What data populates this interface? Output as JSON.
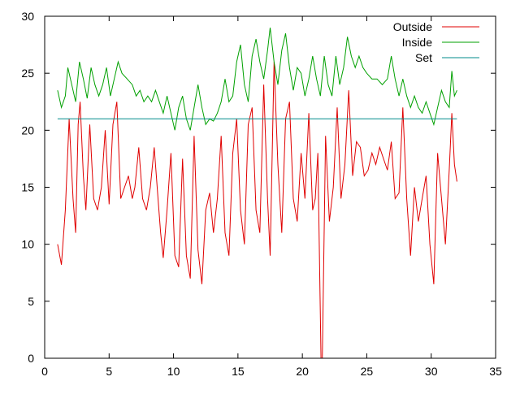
{
  "chart_data": {
    "type": "line",
    "title": "",
    "xlabel": "",
    "ylabel": "",
    "xlim": [
      0,
      35
    ],
    "ylim": [
      0,
      30
    ],
    "x_ticks": [
      0,
      5,
      10,
      15,
      20,
      25,
      30,
      35
    ],
    "y_ticks": [
      0,
      5,
      10,
      15,
      20,
      25,
      30
    ],
    "grid": false,
    "legend_position": "top-right",
    "series": [
      {
        "name": "Outside",
        "color": "#e00000",
        "points": [
          [
            1.0,
            10.0
          ],
          [
            1.3,
            8.2
          ],
          [
            1.6,
            13.0
          ],
          [
            1.9,
            21.0
          ],
          [
            2.2,
            14.0
          ],
          [
            2.4,
            11.0
          ],
          [
            2.6,
            20.5
          ],
          [
            2.75,
            22.5
          ],
          [
            3.0,
            16.0
          ],
          [
            3.2,
            13.0
          ],
          [
            3.5,
            20.5
          ],
          [
            3.8,
            14.0
          ],
          [
            4.1,
            13.0
          ],
          [
            4.4,
            15.0
          ],
          [
            4.7,
            20.0
          ],
          [
            5.0,
            13.5
          ],
          [
            5.3,
            20.5
          ],
          [
            5.6,
            22.5
          ],
          [
            5.9,
            14.0
          ],
          [
            6.2,
            15.0
          ],
          [
            6.5,
            16.0
          ],
          [
            6.8,
            14.0
          ],
          [
            7.0,
            15.0
          ],
          [
            7.3,
            18.5
          ],
          [
            7.6,
            14.0
          ],
          [
            7.9,
            13.0
          ],
          [
            8.2,
            15.0
          ],
          [
            8.5,
            18.5
          ],
          [
            8.8,
            14.0
          ],
          [
            9.0,
            11.0
          ],
          [
            9.2,
            8.8
          ],
          [
            9.5,
            13.0
          ],
          [
            9.8,
            18.0
          ],
          [
            10.1,
            9.0
          ],
          [
            10.4,
            8.0
          ],
          [
            10.7,
            17.5
          ],
          [
            11.0,
            9.0
          ],
          [
            11.3,
            7.0
          ],
          [
            11.6,
            19.5
          ],
          [
            11.9,
            9.5
          ],
          [
            12.2,
            6.5
          ],
          [
            12.5,
            13.0
          ],
          [
            12.8,
            14.5
          ],
          [
            13.1,
            11.0
          ],
          [
            13.4,
            14.0
          ],
          [
            13.7,
            19.5
          ],
          [
            14.0,
            11.0
          ],
          [
            14.3,
            9.0
          ],
          [
            14.6,
            18.0
          ],
          [
            14.9,
            21.0
          ],
          [
            15.2,
            13.0
          ],
          [
            15.5,
            10.0
          ],
          [
            15.8,
            20.5
          ],
          [
            16.1,
            22.0
          ],
          [
            16.4,
            13.0
          ],
          [
            16.7,
            11.0
          ],
          [
            17.0,
            24.0
          ],
          [
            17.3,
            14.0
          ],
          [
            17.5,
            9.0
          ],
          [
            17.8,
            26.0
          ],
          [
            18.1,
            17.0
          ],
          [
            18.4,
            11.0
          ],
          [
            18.7,
            21.0
          ],
          [
            19.0,
            22.5
          ],
          [
            19.3,
            14.0
          ],
          [
            19.6,
            12.0
          ],
          [
            19.9,
            18.0
          ],
          [
            20.2,
            14.0
          ],
          [
            20.5,
            21.5
          ],
          [
            20.8,
            13.0
          ],
          [
            21.0,
            14.0
          ],
          [
            21.2,
            18.0
          ],
          [
            21.45,
            0.0
          ],
          [
            21.55,
            0.0
          ],
          [
            21.8,
            19.5
          ],
          [
            22.1,
            12.0
          ],
          [
            22.4,
            15.0
          ],
          [
            22.7,
            22.0
          ],
          [
            23.0,
            14.0
          ],
          [
            23.3,
            17.0
          ],
          [
            23.6,
            23.5
          ],
          [
            23.9,
            16.0
          ],
          [
            24.2,
            19.0
          ],
          [
            24.5,
            18.5
          ],
          [
            24.8,
            16.0
          ],
          [
            25.1,
            16.5
          ],
          [
            25.4,
            18.0
          ],
          [
            25.7,
            17.0
          ],
          [
            26.0,
            18.5
          ],
          [
            26.3,
            17.5
          ],
          [
            26.6,
            16.5
          ],
          [
            26.9,
            19.0
          ],
          [
            27.2,
            14.0
          ],
          [
            27.5,
            14.5
          ],
          [
            27.8,
            22.0
          ],
          [
            28.1,
            14.0
          ],
          [
            28.4,
            9.0
          ],
          [
            28.7,
            15.0
          ],
          [
            29.0,
            12.0
          ],
          [
            29.3,
            14.0
          ],
          [
            29.6,
            16.0
          ],
          [
            29.9,
            10.0
          ],
          [
            30.2,
            6.5
          ],
          [
            30.5,
            18.0
          ],
          [
            30.8,
            14.0
          ],
          [
            31.1,
            10.0
          ],
          [
            31.4,
            16.5
          ],
          [
            31.6,
            21.5
          ],
          [
            31.8,
            17.0
          ],
          [
            32.0,
            15.5
          ]
        ]
      },
      {
        "name": "Inside",
        "color": "#00a000",
        "points": [
          [
            1.0,
            23.5
          ],
          [
            1.3,
            22.0
          ],
          [
            1.6,
            23.0
          ],
          [
            1.8,
            25.5
          ],
          [
            2.1,
            24.0
          ],
          [
            2.4,
            22.5
          ],
          [
            2.7,
            26.0
          ],
          [
            3.0,
            24.5
          ],
          [
            3.3,
            22.8
          ],
          [
            3.6,
            25.5
          ],
          [
            3.9,
            24.0
          ],
          [
            4.2,
            23.0
          ],
          [
            4.5,
            24.0
          ],
          [
            4.8,
            25.5
          ],
          [
            5.1,
            23.0
          ],
          [
            5.4,
            24.5
          ],
          [
            5.7,
            26.0
          ],
          [
            6.0,
            25.0
          ],
          [
            6.4,
            24.5
          ],
          [
            6.8,
            24.0
          ],
          [
            7.1,
            23.0
          ],
          [
            7.4,
            23.5
          ],
          [
            7.7,
            22.5
          ],
          [
            8.0,
            23.0
          ],
          [
            8.3,
            22.5
          ],
          [
            8.6,
            23.5
          ],
          [
            8.9,
            22.5
          ],
          [
            9.2,
            21.5
          ],
          [
            9.5,
            23.0
          ],
          [
            9.8,
            21.5
          ],
          [
            10.1,
            20.0
          ],
          [
            10.4,
            22.0
          ],
          [
            10.7,
            23.0
          ],
          [
            11.0,
            21.0
          ],
          [
            11.3,
            20.0
          ],
          [
            11.6,
            22.0
          ],
          [
            11.9,
            24.0
          ],
          [
            12.2,
            22.0
          ],
          [
            12.5,
            20.5
          ],
          [
            12.8,
            21.0
          ],
          [
            13.1,
            20.8
          ],
          [
            13.4,
            21.5
          ],
          [
            13.7,
            22.5
          ],
          [
            14.0,
            24.5
          ],
          [
            14.3,
            22.5
          ],
          [
            14.6,
            23.0
          ],
          [
            14.9,
            26.0
          ],
          [
            15.2,
            27.5
          ],
          [
            15.5,
            24.0
          ],
          [
            15.8,
            22.5
          ],
          [
            16.1,
            26.5
          ],
          [
            16.4,
            28.0
          ],
          [
            16.7,
            26.0
          ],
          [
            17.0,
            24.5
          ],
          [
            17.3,
            27.0
          ],
          [
            17.5,
            29.0
          ],
          [
            17.8,
            26.0
          ],
          [
            18.1,
            24.0
          ],
          [
            18.4,
            27.0
          ],
          [
            18.7,
            28.5
          ],
          [
            19.0,
            25.5
          ],
          [
            19.3,
            23.5
          ],
          [
            19.6,
            25.5
          ],
          [
            19.9,
            25.0
          ],
          [
            20.2,
            23.0
          ],
          [
            20.5,
            24.5
          ],
          [
            20.8,
            26.5
          ],
          [
            21.1,
            24.5
          ],
          [
            21.4,
            23.0
          ],
          [
            21.7,
            26.5
          ],
          [
            22.0,
            24.0
          ],
          [
            22.3,
            23.0
          ],
          [
            22.6,
            26.5
          ],
          [
            22.9,
            24.0
          ],
          [
            23.2,
            25.5
          ],
          [
            23.5,
            28.2
          ],
          [
            23.8,
            26.5
          ],
          [
            24.1,
            25.5
          ],
          [
            24.4,
            26.5
          ],
          [
            24.7,
            25.5
          ],
          [
            25.0,
            25.0
          ],
          [
            25.4,
            24.5
          ],
          [
            25.8,
            24.5
          ],
          [
            26.2,
            24.0
          ],
          [
            26.6,
            24.5
          ],
          [
            26.9,
            26.5
          ],
          [
            27.2,
            24.5
          ],
          [
            27.5,
            23.0
          ],
          [
            27.8,
            24.5
          ],
          [
            28.1,
            23.0
          ],
          [
            28.4,
            22.0
          ],
          [
            28.7,
            23.0
          ],
          [
            29.0,
            22.0
          ],
          [
            29.3,
            21.5
          ],
          [
            29.6,
            22.5
          ],
          [
            29.9,
            21.5
          ],
          [
            30.2,
            20.5
          ],
          [
            30.5,
            22.0
          ],
          [
            30.8,
            23.5
          ],
          [
            31.1,
            22.5
          ],
          [
            31.4,
            22.0
          ],
          [
            31.6,
            25.2
          ],
          [
            31.8,
            23.0
          ],
          [
            32.0,
            23.5
          ]
        ]
      },
      {
        "name": "Set",
        "color": "#008b8b",
        "points": [
          [
            1.0,
            21.0
          ],
          [
            32.0,
            21.0
          ]
        ]
      }
    ]
  }
}
